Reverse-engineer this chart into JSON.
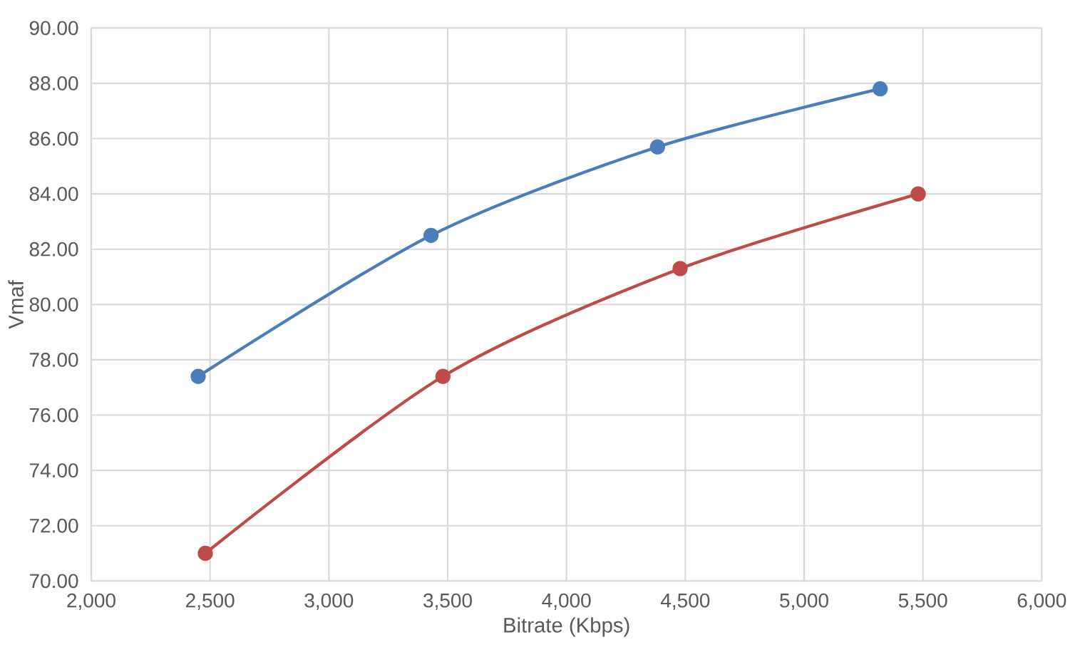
{
  "chart_data": {
    "type": "line",
    "xlabel": "Bitrate (Kbps)",
    "ylabel": "Vmaf",
    "xlim": [
      2000,
      6000
    ],
    "xticks": [
      {
        "value": 2000,
        "label": "2,000"
      },
      {
        "value": 2500,
        "label": "2,500"
      },
      {
        "value": 3000,
        "label": "3,000"
      },
      {
        "value": 3500,
        "label": "3,500"
      },
      {
        "value": 4000,
        "label": "4,000"
      },
      {
        "value": 4500,
        "label": "4,500"
      },
      {
        "value": 5000,
        "label": "5,000"
      },
      {
        "value": 5500,
        "label": "5,500"
      },
      {
        "value": 6000,
        "label": "6,000"
      }
    ],
    "ylim": [
      70,
      90
    ],
    "yticks": [
      {
        "value": 70,
        "label": "70.00"
      },
      {
        "value": 72,
        "label": "72.00"
      },
      {
        "value": 74,
        "label": "74.00"
      },
      {
        "value": 76,
        "label": "76.00"
      },
      {
        "value": 78,
        "label": "78.00"
      },
      {
        "value": 80,
        "label": "80.00"
      },
      {
        "value": 82,
        "label": "82.00"
      },
      {
        "value": 84,
        "label": "84.00"
      },
      {
        "value": 86,
        "label": "86.00"
      },
      {
        "value": 88,
        "label": "88.00"
      },
      {
        "value": 90,
        "label": "90.00"
      }
    ],
    "grid": true,
    "marker": "circle",
    "line_style": "solid",
    "series": [
      {
        "color": "#4a7ebb",
        "x": [
          2450,
          3430,
          4383,
          5320
        ],
        "values": [
          77.4,
          82.5,
          85.7,
          87.8
        ]
      },
      {
        "color": "#be4b48",
        "x": [
          2480,
          3480,
          4478,
          5480
        ],
        "values": [
          71.0,
          77.4,
          81.3,
          84.0
        ]
      }
    ]
  }
}
